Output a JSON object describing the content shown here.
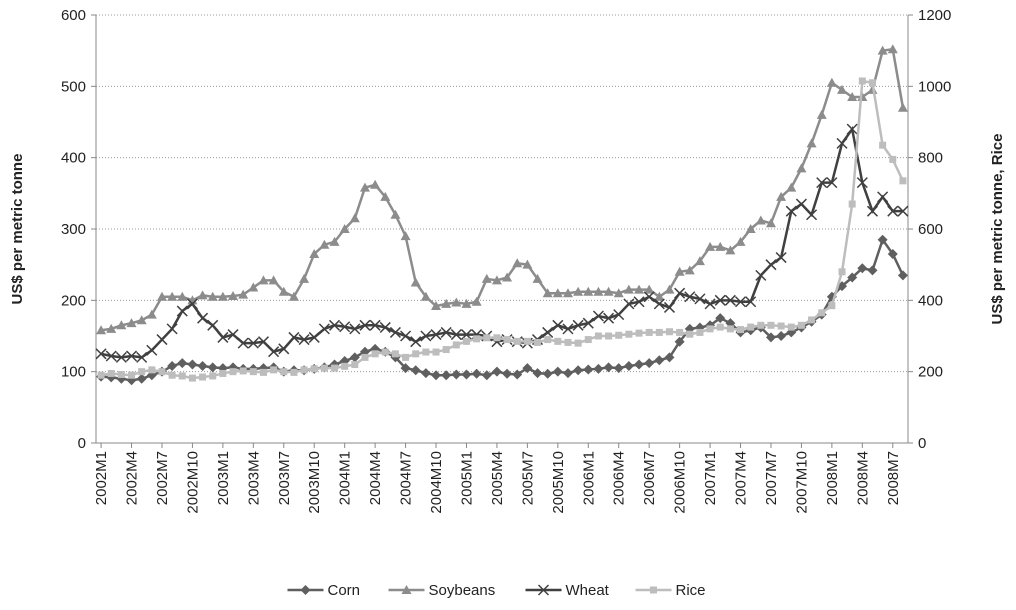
{
  "chart_data": {
    "type": "line",
    "y_label": "US$ per metric tonne",
    "y2_label": "US$ per metric tonne, Rice",
    "categories": [
      "2002M1",
      null,
      null,
      "2002M4",
      null,
      null,
      "2002M7",
      null,
      null,
      "2002M10",
      null,
      null,
      "2003M1",
      null,
      null,
      "2003M4",
      null,
      null,
      "2003M7",
      null,
      null,
      "2003M10",
      null,
      null,
      "2004M1",
      null,
      null,
      "2004M4",
      null,
      null,
      "2004M7",
      null,
      null,
      "2004M10",
      null,
      null,
      "2005M1",
      null,
      null,
      "2005M4",
      null,
      null,
      "2005M7",
      null,
      null,
      "2005M10",
      null,
      null,
      "2006M1",
      null,
      null,
      "2006M4",
      null,
      null,
      "2006M7",
      null,
      null,
      "2006M10",
      null,
      null,
      "2007M1",
      null,
      null,
      "2007M4",
      null,
      null,
      "2007M7",
      null,
      null,
      "2007M10",
      null,
      null,
      "2008M1",
      null,
      null,
      "2008M4",
      null,
      null,
      "2008M7",
      null
    ],
    "ylim": [
      0,
      600
    ],
    "yticks": [
      0,
      100,
      200,
      300,
      400,
      500,
      600
    ],
    "y2lim": [
      0,
      1200
    ],
    "y2ticks": [
      0,
      200,
      400,
      600,
      800,
      1000,
      1200
    ],
    "grid": true,
    "legend": "bottom",
    "series": [
      {
        "name": "Corn",
        "color": "#5f5f5f",
        "marker": "diamond",
        "values": [
          93,
          92,
          90,
          88,
          90,
          95,
          100,
          108,
          112,
          110,
          108,
          106,
          105,
          106,
          104,
          104,
          105,
          106,
          100,
          102,
          102,
          104,
          106,
          110,
          115,
          120,
          128,
          132,
          128,
          120,
          105,
          102,
          98,
          95,
          95,
          96,
          96,
          97,
          95,
          100,
          97,
          96,
          105,
          98,
          97,
          100,
          98,
          102,
          103,
          104,
          106,
          105,
          108,
          110,
          112,
          116,
          120,
          142,
          160,
          162,
          165,
          175,
          168,
          155,
          158,
          162,
          148,
          150,
          155,
          162,
          170,
          180,
          205,
          220,
          232,
          245,
          242,
          285,
          265,
          235
        ]
      },
      {
        "name": "Soybeans",
        "color": "#8c8c8c",
        "marker": "triangle",
        "values": [
          158,
          160,
          165,
          168,
          172,
          180,
          205,
          205,
          205,
          200,
          207,
          205,
          205,
          206,
          208,
          218,
          228,
          228,
          212,
          205,
          230,
          265,
          278,
          282,
          300,
          315,
          358,
          362,
          345,
          320,
          290,
          225,
          205,
          192,
          195,
          197,
          195,
          198,
          230,
          228,
          232,
          252,
          250,
          230,
          210,
          210,
          210,
          212,
          212,
          212,
          212,
          210,
          215,
          215,
          215,
          205,
          215,
          240,
          242,
          255,
          275,
          275,
          270,
          282,
          300,
          312,
          308,
          345,
          358,
          385,
          420,
          460,
          505,
          495,
          485,
          485,
          495,
          550,
          552,
          470
        ]
      },
      {
        "name": "Wheat",
        "color": "#404040",
        "marker": "x",
        "values": [
          125,
          122,
          120,
          122,
          120,
          130,
          145,
          160,
          185,
          195,
          175,
          165,
          148,
          152,
          140,
          140,
          142,
          128,
          132,
          148,
          145,
          148,
          160,
          165,
          163,
          160,
          165,
          165,
          162,
          155,
          150,
          142,
          150,
          152,
          155,
          152,
          152,
          152,
          150,
          142,
          145,
          142,
          140,
          145,
          155,
          165,
          160,
          165,
          168,
          178,
          175,
          180,
          195,
          198,
          205,
          195,
          190,
          210,
          205,
          202,
          195,
          200,
          200,
          198,
          198,
          235,
          250,
          260,
          325,
          335,
          320,
          365,
          365,
          420,
          440,
          365,
          325,
          345,
          325,
          325
        ]
      },
      {
        "name": "Rice",
        "color": "#bdbdbd",
        "marker": "square",
        "axis": "y2",
        "values": [
          190,
          195,
          192,
          190,
          200,
          205,
          200,
          190,
          188,
          182,
          185,
          188,
          195,
          200,
          202,
          200,
          198,
          205,
          200,
          198,
          205,
          208,
          210,
          210,
          215,
          220,
          240,
          250,
          255,
          250,
          240,
          250,
          255,
          255,
          262,
          275,
          285,
          292,
          295,
          295,
          290,
          285,
          285,
          282,
          290,
          285,
          282,
          280,
          290,
          300,
          300,
          302,
          305,
          308,
          310,
          310,
          312,
          310,
          305,
          310,
          320,
          325,
          320,
          318,
          325,
          330,
          330,
          328,
          325,
          330,
          345,
          365,
          385,
          480,
          670,
          1015,
          1010,
          835,
          795,
          735
        ]
      }
    ]
  }
}
